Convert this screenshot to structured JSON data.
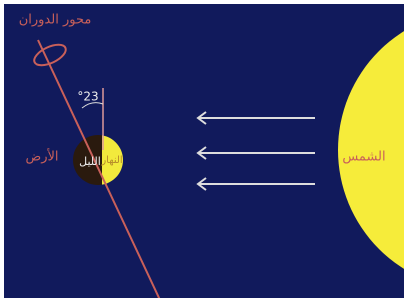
{
  "labels": {
    "axis": "محور الدوران",
    "angle": "°23",
    "earth": "الأرض",
    "night": "الليل",
    "day": "النهار",
    "sun": "الشمس"
  }
}
